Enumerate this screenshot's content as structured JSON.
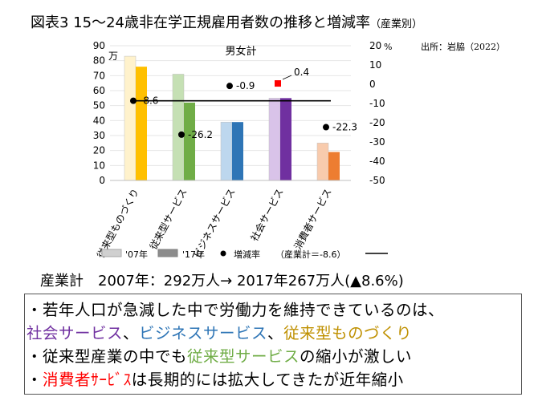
{
  "title": {
    "main": "図表3 15〜24歳非在学正規雇用者数の推移と増減率",
    "sub": "（産業別）"
  },
  "source": "出所：岩脇（2022）",
  "chart_data": {
    "type": "bar",
    "panel_title": "男女計",
    "left_axis": {
      "unit": "万",
      "min": 0,
      "max": 90,
      "ticks": [
        0,
        10,
        20,
        30,
        40,
        50,
        60,
        70,
        80,
        90
      ]
    },
    "right_axis": {
      "unit": "%",
      "min": -50,
      "max": 20,
      "ticks": [
        -50,
        -40,
        -30,
        -20,
        -10,
        0,
        10,
        20
      ]
    },
    "categories": [
      "従来型ものづくり",
      "従来型サービス",
      "ビジネスサービス",
      "社会サービス",
      "消費者サービス"
    ],
    "series": [
      {
        "name": "'07年",
        "values": [
          83,
          71,
          39,
          55,
          25
        ],
        "colors": [
          "#fff2cc",
          "#c5e0b4",
          "#bdd7ee",
          "#d9c3e9",
          "#f8cbad"
        ]
      },
      {
        "name": "'17年",
        "values": [
          76,
          52,
          39,
          55,
          19
        ],
        "colors": [
          "#ffc000",
          "#70ad47",
          "#2e75b6",
          "#7030a0",
          "#ed7d31"
        ]
      }
    ],
    "change_rate": {
      "name": "増減率",
      "values": [
        -8.6,
        -26.2,
        -0.9,
        0.4,
        -22.3
      ],
      "labels": [
        "-8.6",
        "-26.2",
        "-0.9",
        "0.4",
        "-22.3"
      ]
    },
    "industry_total": {
      "value": -8.6,
      "label": "（産業計＝-8.6）"
    },
    "legend": {
      "s07": "'07年",
      "s17": "'17年",
      "rate": "増減率",
      "total": "（産業計＝-8.6）"
    }
  },
  "summary": {
    "label": "産業計",
    "text": "2007年：292万人→ 2017年267万人(▲8.6%)"
  },
  "bullets": {
    "b1": {
      "prefix": "・",
      "text": "若年人口が急減した中で労働力を維持できているのは、"
    },
    "b2": {
      "social": "社会サービス",
      "sep1": "、",
      "biz": "ビジネスサービス",
      "sep2": "、",
      "mono": "従来型ものづくり"
    },
    "b3": {
      "prefix": "・",
      "pre": "従来型産業の中でも",
      "svc": "従来型サービス",
      "post": "の縮小が激しい"
    },
    "b4": {
      "prefix": "・",
      "cons": "消費者ｻｰﾋﾞｽ",
      "post": "は長期的には拡大してきたが近年縮小"
    }
  }
}
